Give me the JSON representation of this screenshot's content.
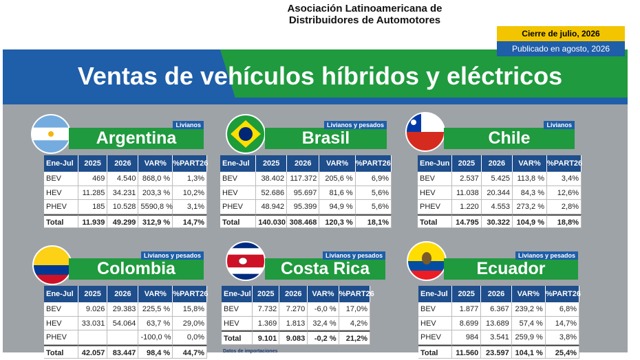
{
  "header": {
    "org_line1": "Asociación Latinoamericana de",
    "org_line2": "Distribuidores de Automotores",
    "cierre": "Cierre de julio, 2026",
    "publicado": "Publicado en agosto, 2026",
    "title": "Ventas de vehículos híbridos y eléctricos"
  },
  "panels": [
    {
      "name": "Argentina",
      "badge": "Livianos",
      "columns": [
        "Ene-Jul",
        "2025",
        "2026",
        "VAR%",
        "%PART26"
      ],
      "rows": [
        [
          "BEV",
          "469",
          "4.540",
          "868,0 %",
          "1,3%"
        ],
        [
          "HEV",
          "11.285",
          "34.231",
          "203,3 %",
          "10,2%"
        ],
        [
          "PHEV",
          "185",
          "10.528",
          "5590,8 %",
          "3,1%"
        ],
        [
          "Total",
          "11.939",
          "49.299",
          "312,9 %",
          "14,7%"
        ]
      ]
    },
    {
      "name": "Brasil",
      "badge": "Livianos y pesados",
      "columns": [
        "Ene-Jul",
        "2025",
        "2026",
        "VAR%",
        "%PART26"
      ],
      "rows": [
        [
          "BEV",
          "38.402",
          "117.372",
          "205,6 %",
          "6,9%"
        ],
        [
          "HEV",
          "52.686",
          "95.697",
          "81,6 %",
          "5,6%"
        ],
        [
          "PHEV",
          "48.942",
          "95.399",
          "94,9 %",
          "5,6%"
        ],
        [
          "Total",
          "140.030",
          "308.468",
          "120,3 %",
          "18,1%"
        ]
      ]
    },
    {
      "name": "Chile",
      "badge": "Livianos",
      "columns": [
        "Ene-Jun",
        "2025",
        "2026",
        "VAR%",
        "%PART26"
      ],
      "rows": [
        [
          "BEV",
          "2.537",
          "5.425",
          "113,8 %",
          "3,4%"
        ],
        [
          "HEV",
          "11.038",
          "20.344",
          "84,3 %",
          "12,6%"
        ],
        [
          "PHEV",
          "1.220",
          "4.553",
          "273,2 %",
          "2,8%"
        ],
        [
          "Total",
          "14.795",
          "30.322",
          "104,9 %",
          "18,8%"
        ]
      ]
    },
    {
      "name": "Colombia",
      "badge": "Livianos y pesados",
      "columns": [
        "Ene-Jul",
        "2025",
        "2026",
        "VAR%",
        "%PART26"
      ],
      "rows": [
        [
          "BEV",
          "9.026",
          "29.383",
          "225,5 %",
          "15,8%"
        ],
        [
          "HEV",
          "33.031",
          "54.064",
          "63,7 %",
          "29,0%"
        ],
        [
          "PHEV",
          "",
          "",
          "-100,0 %",
          "0,0%"
        ],
        [
          "Total",
          "42.057",
          "83.447",
          "98,4 %",
          "44,7%"
        ]
      ]
    },
    {
      "name": "Costa Rica",
      "badge": "Livianos y pesados",
      "columns": [
        "Ene-Jul",
        "2025",
        "2026",
        "VAR%",
        "%PART26"
      ],
      "rows": [
        [
          "BEV",
          "7.732",
          "7.270",
          "-6,0 %",
          "17,0%"
        ],
        [
          "HEV",
          "1.369",
          "1.813",
          "32,4 %",
          "4,2%"
        ],
        [
          "Total",
          "9.101",
          "9.083",
          "-0,2 %",
          "21,2%"
        ]
      ],
      "note": "Datos de importaciones"
    },
    {
      "name": "Ecuador",
      "badge": "Livianos y pesados",
      "columns": [
        "Ene-Jul",
        "2025",
        "2026",
        "VAR%",
        "%PART26"
      ],
      "rows": [
        [
          "BEV",
          "1.877",
          "6.367",
          "239,2 %",
          "6,8%"
        ],
        [
          "HEV",
          "8.699",
          "13.689",
          "57,4 %",
          "14,7%"
        ],
        [
          "PHEV",
          "984",
          "3.541",
          "259,9 %",
          "3,8%"
        ],
        [
          "Total",
          "11.560",
          "23.597",
          "104,1 %",
          "25,4%"
        ]
      ]
    }
  ]
}
